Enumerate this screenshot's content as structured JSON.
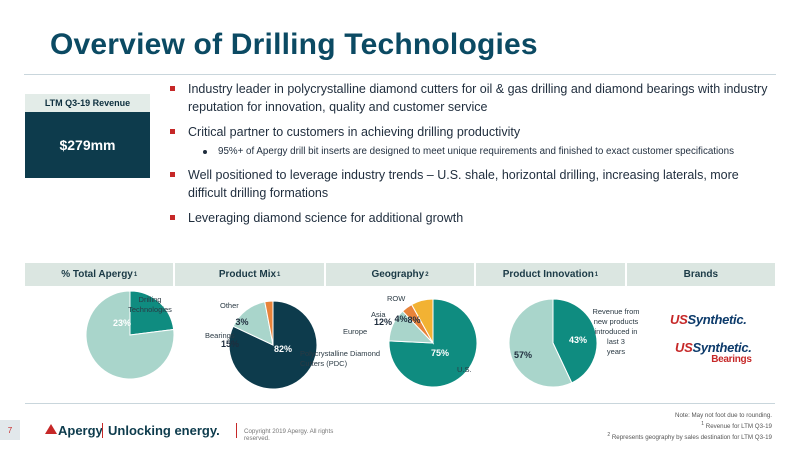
{
  "title": "Overview of Drilling Technologies",
  "revenue": {
    "label": "LTM Q3-19 Revenue",
    "value": "$279mm"
  },
  "bullets": [
    {
      "text": "Industry leader in polycrystalline diamond cutters for oil & gas drilling and diamond bearings with industry reputation for innovation, quality and customer service"
    },
    {
      "text": "Critical partner to customers in achieving drilling productivity",
      "sub": "95%+ of Apergy drill bit inserts are designed to meet unique requirements and finished to exact customer specifications"
    },
    {
      "text": "Well positioned to leverage industry trends – U.S. shale, horizontal drilling, increasing laterals, more difficult drilling formations"
    },
    {
      "text": "Leveraging diamond science for additional growth"
    }
  ],
  "header_cells": [
    {
      "label": "% Total Apergy",
      "sup": "1"
    },
    {
      "label": "Product Mix",
      "sup": "1"
    },
    {
      "label": "Geography",
      "sup": "2"
    },
    {
      "label": "Product Innovation",
      "sup": "1"
    },
    {
      "label": "Brands",
      "sup": ""
    }
  ],
  "colors": {
    "teal": "#0f8c80",
    "light_teal": "#a9d5cb",
    "navy": "#0d3b4c",
    "orange": "#e8833a",
    "yellow": "#f2b233",
    "red": "#c62828"
  },
  "chart_data": [
    {
      "type": "pie",
      "title": "% Total Apergy",
      "slices": [
        {
          "label": "Drilling Technologies",
          "value": 23,
          "data_label": "23%",
          "color": "#0f8c80"
        },
        {
          "label": "",
          "value": 77,
          "data_label": "",
          "color": "#a9d5cb"
        }
      ]
    },
    {
      "type": "pie",
      "title": "Product Mix",
      "slices": [
        {
          "label": "Polycrystalline Diamond Cutters (PDC)",
          "value": 82,
          "data_label": "82%",
          "color": "#0d3b4c"
        },
        {
          "label": "Bearings",
          "value": 15,
          "data_label": "15%",
          "color": "#a9d5cb"
        },
        {
          "label": "Other",
          "value": 3,
          "data_label": "3%",
          "color": "#e8833a"
        }
      ]
    },
    {
      "type": "pie",
      "title": "Geography",
      "slices": [
        {
          "label": "U.S.",
          "value": 75,
          "data_label": "75%",
          "color": "#0f8c80"
        },
        {
          "label": "Europe",
          "value": 12,
          "data_label": "12%",
          "color": "#a9d5cb"
        },
        {
          "label": "Asia",
          "value": 4,
          "data_label": "4%",
          "color": "#e8833a"
        },
        {
          "label": "ROW",
          "value": 8,
          "data_label": "8%",
          "color": "#f2b233"
        }
      ]
    },
    {
      "type": "pie",
      "title": "Product Innovation",
      "slices": [
        {
          "label": "Revenue from new products introduced in last 3 years",
          "value": 43,
          "data_label": "43%",
          "color": "#0f8c80"
        },
        {
          "label": "",
          "value": 57,
          "data_label": "57%",
          "color": "#a9d5cb"
        }
      ]
    }
  ],
  "brands": {
    "brand1_us": "US",
    "brand1_rest": "Synthetic.",
    "brand2_us": "US",
    "brand2_rest": "Synthetic.",
    "brand2_sub": "Bearings"
  },
  "footnotes": {
    "note": "Note: May not foot due to rounding.",
    "fn1_num": "1",
    "fn1": "Revenue for LTM Q3-19",
    "fn2_num": "2",
    "fn2": "Represents geography by sales destination for LTM Q3-19"
  },
  "footer": {
    "page": "7",
    "logo": "Apergy",
    "tagline": "Unlocking energy.",
    "copyright": "Copyright 2019 Apergy. All rights reserved."
  }
}
